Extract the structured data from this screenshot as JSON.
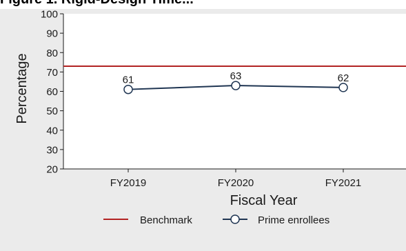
{
  "page": {
    "clipped_title": "Figure 1.  Rigid-Design Time..."
  },
  "chart_data": {
    "type": "line",
    "title": "",
    "xlabel": "Fiscal Year",
    "ylabel": "Percentage",
    "categories": [
      "FY2019",
      "FY2020",
      "FY2021"
    ],
    "ylim": [
      20,
      100
    ],
    "yticks": [
      20,
      30,
      40,
      50,
      60,
      70,
      80,
      90,
      100
    ],
    "grid": false,
    "legend_position": "bottom",
    "series": [
      {
        "name": "Prime enrollees",
        "values": [
          61,
          63,
          62
        ],
        "color": "#1f3552",
        "marker": "hollow-circle",
        "data_labels": [
          "61",
          "63",
          "62"
        ]
      }
    ],
    "reference_lines": [
      {
        "name": "Benchmark",
        "value": 73,
        "color": "#b22222"
      }
    ]
  }
}
